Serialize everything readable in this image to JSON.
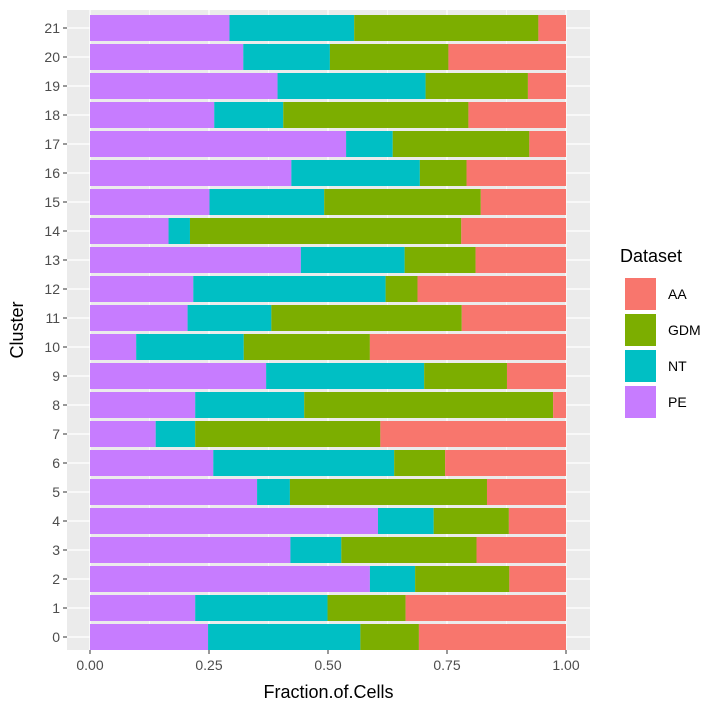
{
  "chart_data": {
    "type": "bar",
    "orientation": "horizontal",
    "stacked": true,
    "xlabel": "Fraction.of.Cells",
    "ylabel": "Cluster",
    "xlim": [
      0,
      1
    ],
    "x_ticks": [
      "0.00",
      "0.25",
      "0.50",
      "0.75",
      "1.00"
    ],
    "grid": true,
    "legend": {
      "title": "Dataset",
      "position": "right"
    },
    "categories": [
      "0",
      "1",
      "2",
      "3",
      "4",
      "5",
      "6",
      "7",
      "8",
      "9",
      "10",
      "11",
      "12",
      "13",
      "14",
      "15",
      "16",
      "17",
      "18",
      "19",
      "20",
      "21"
    ],
    "series": [
      {
        "name": "PE",
        "color": "#C77CFF",
        "values": [
          0.248,
          0.221,
          0.588,
          0.421,
          0.605,
          0.351,
          0.259,
          0.138,
          0.221,
          0.37,
          0.097,
          0.205,
          0.217,
          0.443,
          0.165,
          0.251,
          0.423,
          0.538,
          0.261,
          0.394,
          0.322,
          0.293
        ]
      },
      {
        "name": "NT",
        "color": "#00BFC4",
        "values": [
          0.32,
          0.278,
          0.095,
          0.107,
          0.117,
          0.069,
          0.38,
          0.083,
          0.229,
          0.332,
          0.226,
          0.176,
          0.404,
          0.218,
          0.045,
          0.241,
          0.27,
          0.098,
          0.145,
          0.311,
          0.182,
          0.262
        ]
      },
      {
        "name": "GDM",
        "color": "#7CAE00",
        "values": [
          0.123,
          0.164,
          0.198,
          0.284,
          0.158,
          0.414,
          0.107,
          0.389,
          0.523,
          0.174,
          0.265,
          0.4,
          0.067,
          0.149,
          0.57,
          0.329,
          0.098,
          0.287,
          0.389,
          0.215,
          0.249,
          0.387
        ]
      },
      {
        "name": "AA",
        "color": "#F8766D",
        "values": [
          0.309,
          0.337,
          0.119,
          0.188,
          0.12,
          0.166,
          0.254,
          0.39,
          0.027,
          0.124,
          0.412,
          0.219,
          0.312,
          0.19,
          0.22,
          0.179,
          0.209,
          0.077,
          0.205,
          0.08,
          0.247,
          0.058
        ]
      }
    ],
    "legend_order": [
      "AA",
      "GDM",
      "NT",
      "PE"
    ]
  }
}
